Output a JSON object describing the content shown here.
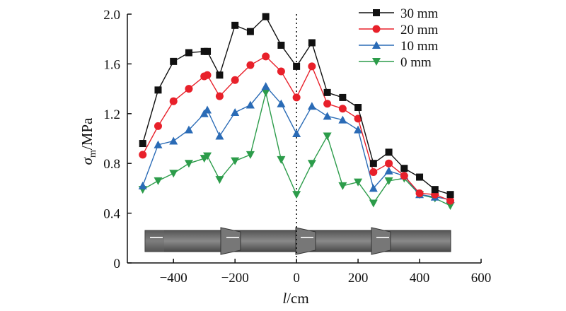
{
  "chart_data": {
    "type": "line",
    "xlabel_italic": "l",
    "xlabel_unit": "/cm",
    "ylabel_symbol": "σ",
    "ylabel_subscript": "m",
    "ylabel_unit": "/MPa",
    "xlim": [
      -550,
      600
    ],
    "ylim": [
      0,
      2.0
    ],
    "xticks": [
      -400,
      -200,
      0,
      200,
      400,
      600
    ],
    "xtick_labels": [
      "−400",
      "−200",
      "0",
      "200",
      "400",
      "600"
    ],
    "yticks": [
      0,
      0.4,
      0.8,
      1.2,
      1.6,
      2.0
    ],
    "ytick_labels": [
      "0",
      "0.4",
      "0.8",
      "1.2",
      "1.6",
      "2.0"
    ],
    "reference_line_x": 0,
    "legend_position": "top-right",
    "x": [
      -500,
      -450,
      -400,
      -350,
      -300,
      -290,
      -250,
      -200,
      -150,
      -100,
      -50,
      0,
      50,
      100,
      150,
      200,
      250,
      300,
      350,
      400,
      450,
      500
    ],
    "series": [
      {
        "name": "30 mm",
        "color": "#111111",
        "marker": "square",
        "values": [
          0.96,
          1.39,
          1.62,
          1.69,
          1.7,
          1.7,
          1.51,
          1.91,
          1.86,
          1.98,
          1.75,
          1.58,
          1.77,
          1.37,
          1.33,
          1.25,
          0.8,
          0.89,
          0.76,
          0.69,
          0.59,
          0.55
        ]
      },
      {
        "name": "20 mm",
        "color": "#e8202a",
        "marker": "circle",
        "values": [
          0.87,
          1.1,
          1.3,
          1.4,
          1.5,
          1.51,
          1.34,
          1.47,
          1.59,
          1.66,
          1.54,
          1.33,
          1.58,
          1.28,
          1.24,
          1.16,
          0.73,
          0.8,
          0.7,
          0.56,
          0.55,
          0.5
        ]
      },
      {
        "name": "10 mm",
        "color": "#2a6bb6",
        "marker": "triangle-up",
        "values": [
          0.62,
          0.95,
          0.98,
          1.07,
          1.2,
          1.23,
          1.02,
          1.21,
          1.27,
          1.42,
          1.28,
          1.04,
          1.26,
          1.18,
          1.15,
          1.07,
          0.6,
          0.74,
          0.7,
          0.55,
          0.53,
          0.51
        ]
      },
      {
        "name": "0 mm",
        "color": "#2c9c4a",
        "marker": "triangle-down",
        "values": [
          0.59,
          0.66,
          0.72,
          0.8,
          0.84,
          0.86,
          0.67,
          0.82,
          0.87,
          1.37,
          0.83,
          0.55,
          0.8,
          1.02,
          0.62,
          0.65,
          0.48,
          0.66,
          0.68,
          0.55,
          0.52,
          0.46
        ]
      }
    ]
  }
}
